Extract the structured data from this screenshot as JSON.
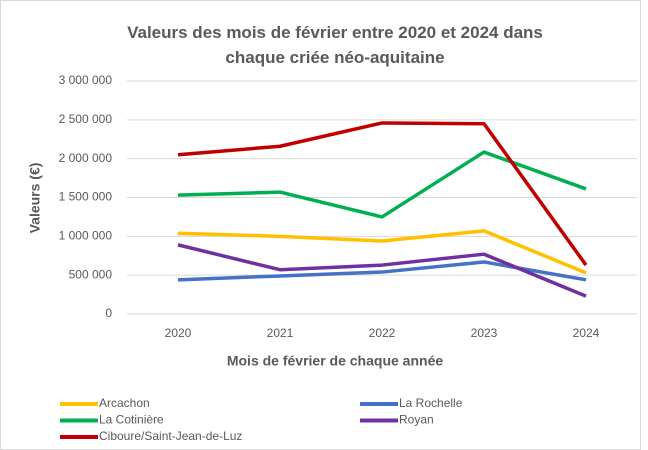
{
  "chart_data": {
    "type": "line",
    "title": "Valeurs des mois de février entre 2020 et 2024 dans chaque criée néo-aquitaine",
    "x_label": "Mois de février de chaque année",
    "y_label": "Valeurs (€)",
    "categories": [
      "2020",
      "2021",
      "2022",
      "2023",
      "2024"
    ],
    "ylim": [
      0,
      3000000
    ],
    "yticks": [
      0,
      {
        "value": 500000,
        "label": "500 000"
      },
      {
        "value": 1000000,
        "label": "1 000 000"
      },
      {
        "value": 1500000,
        "label": "1 500 000"
      },
      {
        "value": 2000000,
        "label": "2 000 000"
      },
      {
        "value": 2500000,
        "label": "2 500 000"
      },
      {
        "value": 3000000,
        "label": "3 000 000"
      }
    ],
    "series": [
      {
        "name": "Arcachon",
        "color": "#ffc000",
        "values": [
          1040000,
          1000000,
          940000,
          1070000,
          530000
        ]
      },
      {
        "name": "La Rochelle",
        "color": "#4472c4",
        "values": [
          440000,
          490000,
          540000,
          670000,
          440000
        ]
      },
      {
        "name": "La Cotinière",
        "color": "#00b050",
        "values": [
          1530000,
          1570000,
          1250000,
          2085000,
          1610000
        ]
      },
      {
        "name": "Royan",
        "color": "#7030a0",
        "values": [
          890000,
          570000,
          630000,
          770000,
          230000
        ]
      },
      {
        "name": "Ciboure/Saint-Jean-de-Luz",
        "color": "#c00000",
        "values": [
          2050000,
          2160000,
          2460000,
          2450000,
          630000
        ]
      }
    ]
  }
}
